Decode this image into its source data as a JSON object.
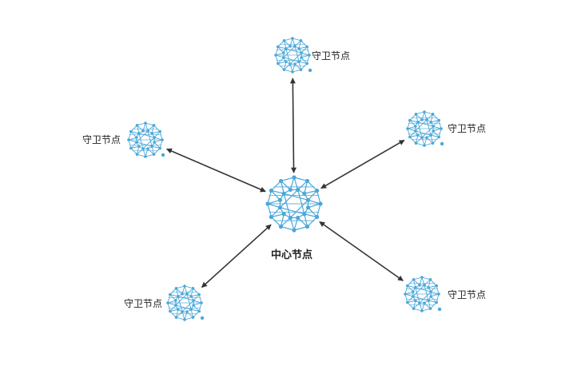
{
  "diagram": {
    "nodes": [
      {
        "id": "center",
        "label": "中心节点",
        "role": "center",
        "icon": "network-sphere-icon"
      },
      {
        "id": "g1",
        "label": "守卫节点",
        "role": "guard",
        "icon": "network-sphere-icon"
      },
      {
        "id": "g2",
        "label": "守卫节点",
        "role": "guard",
        "icon": "network-sphere-icon"
      },
      {
        "id": "g3",
        "label": "守卫节点",
        "role": "guard",
        "icon": "network-sphere-icon"
      },
      {
        "id": "g4",
        "label": "守卫节点",
        "role": "guard",
        "icon": "network-sphere-icon"
      },
      {
        "id": "g5",
        "label": "守卫节点",
        "role": "guard",
        "icon": "network-sphere-icon"
      }
    ],
    "edges": [
      {
        "from": "center",
        "to": "g1",
        "direction": "both"
      },
      {
        "from": "center",
        "to": "g2",
        "direction": "both"
      },
      {
        "from": "center",
        "to": "g3",
        "direction": "both"
      },
      {
        "from": "center",
        "to": "g4",
        "direction": "both"
      },
      {
        "from": "center",
        "to": "g5",
        "direction": "both"
      }
    ],
    "colors": {
      "node": "#4aa8d8",
      "edge": "#333333",
      "text": "#222222"
    }
  }
}
